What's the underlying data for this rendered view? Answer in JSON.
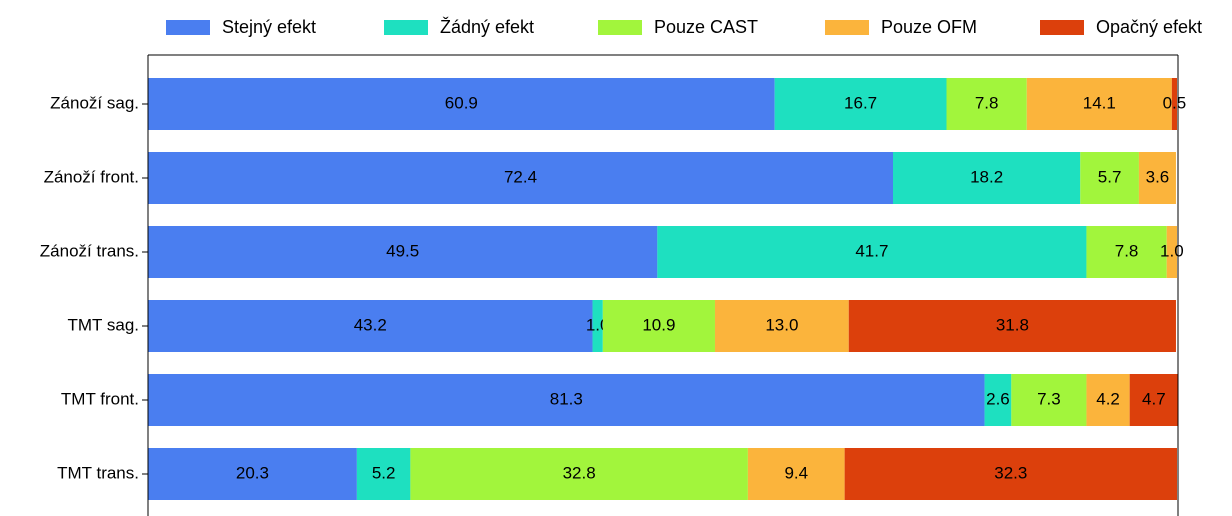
{
  "chart_data": {
    "type": "barh_stacked",
    "categories": [
      "Zánoží sag.",
      "Zánoží front.",
      "Zánoží trans.",
      "TMT sag.",
      "TMT front.",
      "TMT trans."
    ],
    "series": [
      {
        "name": "Stejný efekt",
        "color": "#4a7ef0",
        "values": [
          60.9,
          72.4,
          49.5,
          43.2,
          81.3,
          20.3
        ],
        "value_labels": [
          "60.9",
          "72.4",
          "49.5",
          "43.2",
          "81.3",
          "20.3"
        ]
      },
      {
        "name": "Žádný efekt",
        "color": "#1ee0c0",
        "values": [
          16.7,
          18.2,
          41.7,
          1.0,
          2.6,
          5.2
        ],
        "value_labels": [
          "16.7",
          "18.2",
          "41.7",
          "1.0",
          "2.6",
          "5.2"
        ]
      },
      {
        "name": "Pouze CAST",
        "color": "#a2f53c",
        "values": [
          7.8,
          5.7,
          7.8,
          10.9,
          7.3,
          32.8
        ],
        "value_labels": [
          "7.8",
          "5.7",
          "7.8",
          "10.9",
          "7.3",
          "32.8"
        ]
      },
      {
        "name": "Pouze OFM",
        "color": "#fbb43c",
        "values": [
          14.1,
          3.6,
          1.0,
          13.0,
          4.2,
          9.4
        ],
        "value_labels": [
          "14.1",
          "3.6",
          "1.0",
          "13.0",
          "4.2",
          "9.4"
        ]
      },
      {
        "name": "Opačný efekt",
        "color": "#dc400c",
        "values": [
          0.5,
          null,
          null,
          31.8,
          4.7,
          32.3
        ],
        "value_labels": [
          "0.5",
          null,
          null,
          "31.8",
          "4.7",
          "32.3"
        ]
      }
    ],
    "xlim": [
      0,
      100
    ],
    "legend": "top"
  }
}
